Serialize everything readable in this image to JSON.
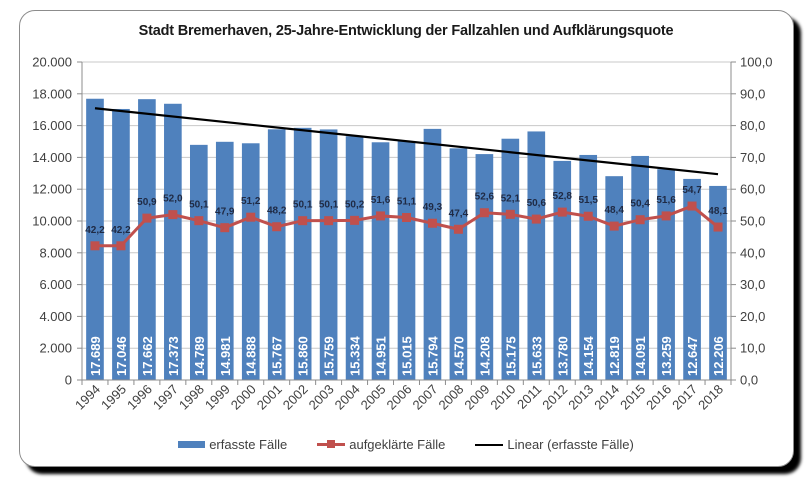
{
  "chart_data": {
    "type": "bar",
    "title": "Stadt Bremerhaven, 25-Jahre-Entwicklung der Fallzahlen und Aufklärungsquote",
    "xlabel": "",
    "ylabel": "",
    "y2label": "",
    "categories": [
      "1994",
      "1995",
      "1996",
      "1997",
      "1998",
      "1999",
      "2000",
      "2001",
      "2002",
      "2003",
      "2004",
      "2005",
      "2006",
      "2007",
      "2008",
      "2009",
      "2010",
      "2011",
      "2012",
      "2013",
      "2014",
      "2015",
      "2016",
      "2017",
      "2018"
    ],
    "series": [
      {
        "name": "erfasste Fälle",
        "type": "bar",
        "axis": "left",
        "color": "#4f81bd",
        "values": [
          17689,
          17046,
          17662,
          17373,
          14789,
          14981,
          14888,
          15767,
          15860,
          15759,
          15334,
          14951,
          15015,
          15794,
          14570,
          14208,
          15175,
          15633,
          13780,
          14154,
          12819,
          14091,
          13259,
          12647,
          12206
        ],
        "labels": [
          "17.689",
          "17.046",
          "17.662",
          "17.373",
          "14.789",
          "14.981",
          "14.888",
          "15.767",
          "15.860",
          "15.759",
          "15.334",
          "14.951",
          "15.015",
          "15.794",
          "14.570",
          "14.208",
          "15.175",
          "15.633",
          "13.780",
          "14.154",
          "12.819",
          "14.091",
          "13.259",
          "12.647",
          "12.206"
        ]
      },
      {
        "name": "aufgeklärte Fälle",
        "type": "line",
        "axis": "right",
        "color": "#c0504d",
        "values": [
          42.2,
          42.2,
          50.9,
          52.0,
          50.1,
          47.9,
          51.2,
          48.2,
          50.1,
          50.1,
          50.2,
          51.6,
          51.1,
          49.3,
          47.4,
          52.6,
          52.1,
          50.6,
          52.8,
          51.5,
          48.4,
          50.4,
          51.6,
          54.7,
          48.1
        ],
        "labels": [
          "42,2",
          "42,2",
          "50,9",
          "52,0",
          "50,1",
          "47,9",
          "51,2",
          "48,2",
          "50,1",
          "50,1",
          "50,2",
          "51,6",
          "51,1",
          "49,3",
          "47,4",
          "52,6",
          "52,1",
          "50,6",
          "52,8",
          "51,5",
          "48,4",
          "50,4",
          "51,6",
          "54,7",
          "48,1"
        ]
      },
      {
        "name": "Linear (erfasste Fälle)",
        "type": "trendline",
        "axis": "left",
        "color": "#000000",
        "of": "erfasste Fälle"
      }
    ],
    "y_axis_left": {
      "range": [
        0,
        20000
      ],
      "ticks": [
        "0",
        "2.000",
        "4.000",
        "6.000",
        "8.000",
        "10.000",
        "12.000",
        "14.000",
        "16.000",
        "18.000",
        "20.000"
      ]
    },
    "y_axis_right": {
      "range": [
        0,
        100
      ],
      "ticks": [
        "0,0",
        "10,0",
        "20,0",
        "30,0",
        "40,0",
        "50,0",
        "60,0",
        "70,0",
        "80,0",
        "90,0",
        "100,0"
      ]
    },
    "grid": true,
    "legend_position": "bottom"
  },
  "legend": {
    "bars": "erfasste Fälle",
    "line": "aufgeklärte Fälle",
    "trend": "Linear (erfasste Fälle)"
  }
}
